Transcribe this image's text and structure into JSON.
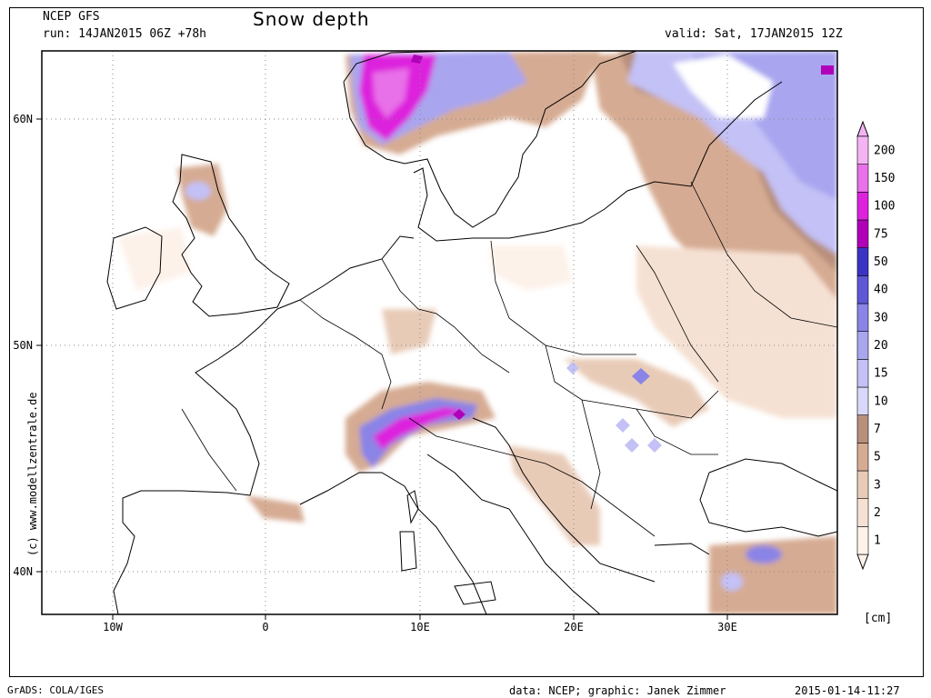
{
  "header": {
    "source": "NCEP GFS",
    "run": "run: 14JAN2015 06Z +78h",
    "title": "Snow depth",
    "valid": "valid: Sat, 17JAN2015 12Z"
  },
  "side_credit": "(c) www.modellzentrale.de",
  "footer": {
    "left": "GrADS: COLA/IGES",
    "center": "data: NCEP; graphic: Janek Zimmer",
    "right": "2015-01-14-11:27"
  },
  "axes": {
    "lon_labels": [
      "10W",
      "0",
      "10E",
      "20E",
      "30E"
    ],
    "lat_labels": [
      "60N",
      "50N",
      "40N"
    ]
  },
  "colorbar": {
    "unit": "[cm]",
    "levels": [
      "1",
      "2",
      "3",
      "5",
      "7",
      "10",
      "15",
      "20",
      "30",
      "40",
      "50",
      "75",
      "100",
      "150",
      "200"
    ],
    "colors": [
      "#fdf2ea",
      "#f5e1d3",
      "#e8cbb7",
      "#d6ab93",
      "#b78f7b",
      "#d9d8fa",
      "#c3c1f6",
      "#a9a5ef",
      "#8a84e6",
      "#5e58d6",
      "#3a34c4",
      "#b000b8",
      "#dd22dd",
      "#e870e8",
      "#f4b4f4"
    ]
  }
}
